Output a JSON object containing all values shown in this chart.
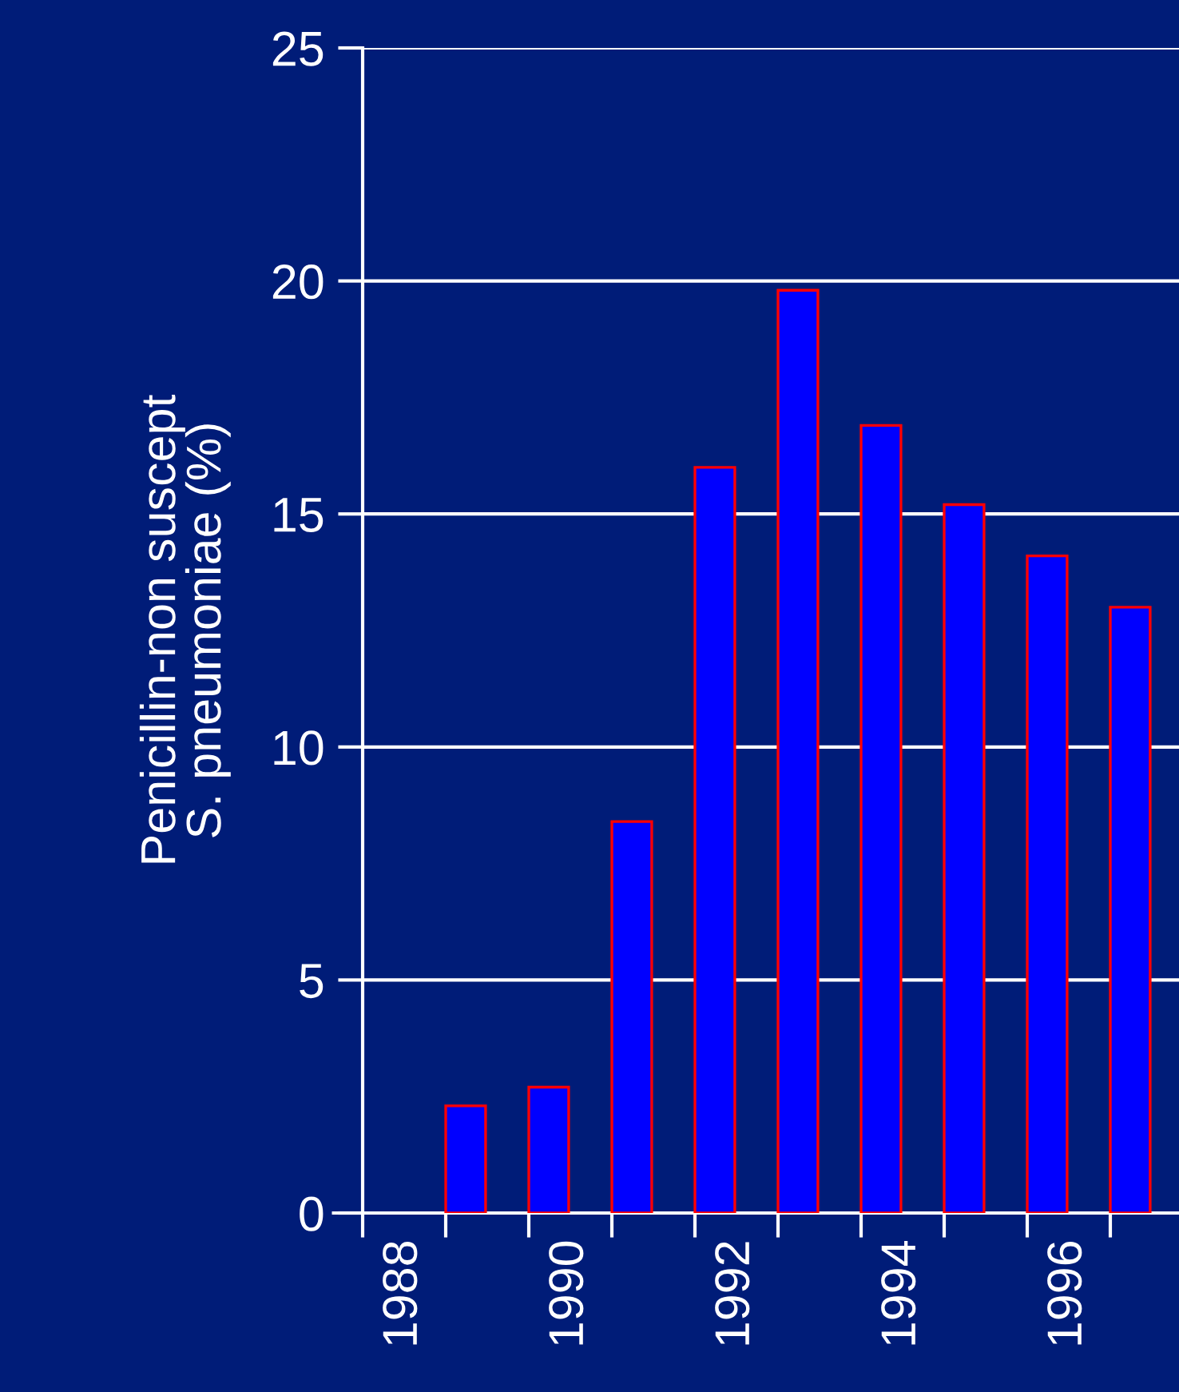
{
  "chart_data": {
    "type": "bar",
    "ylabel": "Penicillin-non suscept\nS. pneumoniae (%)",
    "categories": [
      "1988",
      null,
      "1990",
      null,
      "1992",
      null,
      "1994",
      null,
      "1996",
      null
    ],
    "values": [
      null,
      2.3,
      2.7,
      8.4,
      16.0,
      19.8,
      16.9,
      15.2,
      14.1,
      13.0
    ],
    "color": "#0000ff",
    "ylim": [
      0,
      25
    ],
    "yticks": [
      0,
      5,
      10,
      15,
      20,
      25
    ],
    "grid": "y"
  }
}
